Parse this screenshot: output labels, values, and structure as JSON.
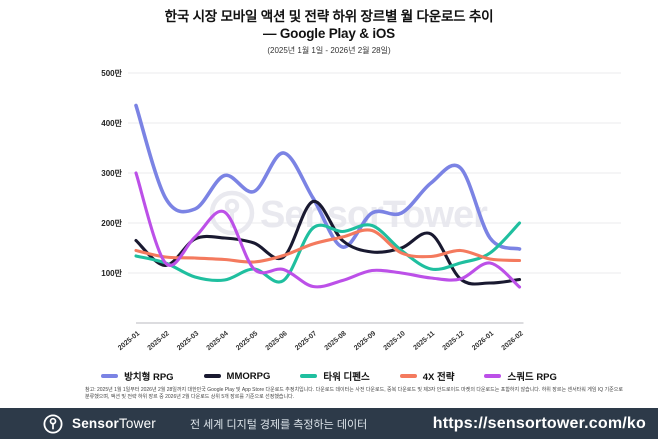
{
  "header": {
    "title_line1": "한국 시장 모바일 액션 및 전략 하위 장르별 월 다운로드 추이",
    "title_line2": "— Google Play & iOS",
    "subtitle": "(2025년 1월 1일 - 2026년 2월 28일)"
  },
  "watermark": {
    "text": "SensorTower"
  },
  "chart_data": {
    "type": "line",
    "title": "한국 시장 모바일 액션 및 전략 하위 장르별 월 다운로드 추이 — Google Play & iOS",
    "unit": "만 (10k downloads)",
    "x": [
      "2025-01",
      "2025-02",
      "2025-03",
      "2025-04",
      "2025-05",
      "2025-06",
      "2025-07",
      "2025-08",
      "2025-09",
      "2025-10",
      "2025-11",
      "2025-12",
      "2026-01",
      "2026-02"
    ],
    "ylim": [
      0,
      500
    ],
    "grid": true,
    "legend_position": "bottom",
    "y_ticks": [
      {
        "value": 500,
        "label": "500만"
      },
      {
        "value": 400,
        "label": "400만"
      },
      {
        "value": 300,
        "label": "300만"
      },
      {
        "value": 200,
        "label": "200만"
      },
      {
        "value": 100,
        "label": "100만"
      }
    ],
    "series": [
      {
        "name": "방치형 RPG",
        "color": "#7b83e4",
        "values": [
          435,
          250,
          228,
          295,
          263,
          340,
          250,
          152,
          220,
          220,
          280,
          310,
          170,
          148
        ]
      },
      {
        "name": "MMORPG",
        "color": "#191930",
        "values": [
          165,
          115,
          168,
          170,
          160,
          132,
          243,
          165,
          142,
          150,
          178,
          88,
          80,
          87
        ]
      },
      {
        "name": "타워 디펜스",
        "color": "#1fbf9f",
        "values": [
          134,
          120,
          92,
          86,
          108,
          85,
          190,
          183,
          195,
          145,
          108,
          120,
          140,
          200
        ]
      },
      {
        "name": "4X 전략",
        "color": "#f47a5e",
        "values": [
          145,
          132,
          130,
          127,
          122,
          135,
          158,
          172,
          185,
          140,
          133,
          145,
          128,
          125
        ]
      },
      {
        "name": "스쿼드 RPG",
        "color": "#bc50e8",
        "values": [
          300,
          120,
          172,
          222,
          108,
          107,
          73,
          85,
          105,
          100,
          90,
          88,
          120,
          72
        ]
      }
    ]
  },
  "disclaimer": {
    "line1": "참고: 2025년 1월 1일부터 2026년 2월 28일까지 대한민국 Google Play 및 App Store 다운로드 추정치입니다. 다운로드 데이터는 사전 다운로드, 중복 다운로드 및 제3자 안드로이드 마켓의 다운로드는 포함하지 않습니다. 하위 장르는 센서타워 게임 IQ 기준으로",
    "line2": "분류했으며, 액션 및 전략 하위 장르 중 2026년 2월 다운로드 상위 5개 장르를 기준으로 선정했습니다."
  },
  "footer": {
    "brand_sensor": "Sensor",
    "brand_tower": "Tower",
    "tagline": "전 세계 디지털 경제를 측정하는 데이터",
    "url": "https://sensortower.com/ko",
    "bar_color": "#2d3a49"
  }
}
